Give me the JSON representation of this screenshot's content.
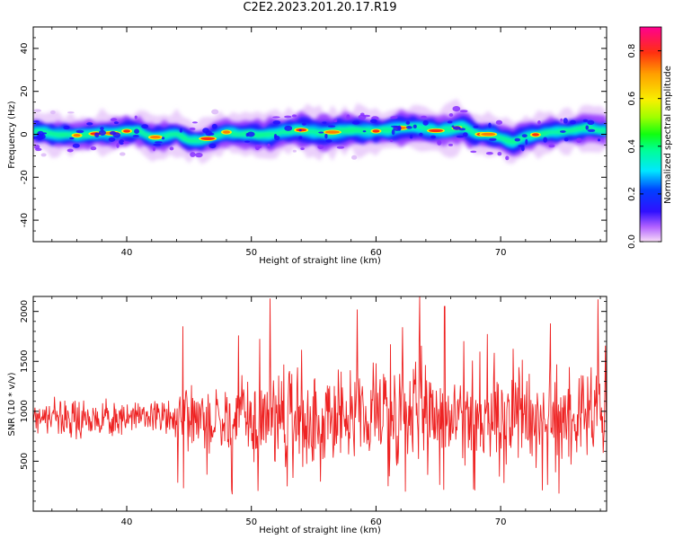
{
  "title": "C2E2.2023.201.20.17.R19",
  "colors": {
    "snr_line": "#ee2222",
    "axes": "#000000"
  },
  "chart_data": [
    {
      "type": "heatmap",
      "xlabel": "Height of straight line (km)",
      "ylabel": "Frequency (Hz)",
      "xlim": [
        32.5,
        78.5
      ],
      "ylim": [
        -50,
        50
      ],
      "xticks": [
        40,
        50,
        60,
        70
      ],
      "yticks": [
        -40,
        -20,
        0,
        20,
        40
      ],
      "colormap": "gist_ncar-like (magenta→purple→blue→cyan→green→yellow→orange→red)",
      "colorbar": {
        "label": "Normalized spectral amplitude",
        "range": [
          0,
          0.9
        ],
        "ticks": [
          "0.0",
          "0.2",
          "0.4",
          "0.6",
          "0.8"
        ]
      },
      "ridge_center": {
        "x": [
          33,
          34,
          35,
          36,
          37,
          38,
          39,
          40,
          41,
          42,
          43,
          44,
          45,
          46,
          47,
          48,
          49,
          50,
          51,
          52,
          53,
          54,
          55,
          56,
          57,
          58,
          59,
          60,
          61,
          62,
          63,
          64,
          65,
          66,
          67,
          68,
          69,
          70,
          71,
          72,
          73,
          74,
          75,
          76,
          77,
          78
        ],
        "y": [
          1.5,
          0,
          0,
          -0.5,
          0,
          0.5,
          0.5,
          1.5,
          1.5,
          -1.5,
          -1,
          0.5,
          -3,
          -3,
          -1,
          1,
          0,
          0,
          -0.5,
          0.5,
          1.5,
          2,
          1,
          0.5,
          1.5,
          2,
          1.5,
          1.5,
          2,
          3,
          3.5,
          2.5,
          1.5,
          2.5,
          3.5,
          0,
          0,
          -1.5,
          -4,
          -1,
          0,
          1,
          1.5,
          2,
          3,
          2
        ]
      }
    },
    {
      "type": "line",
      "xlabel": "Height of straight line (km)",
      "ylabel": "SNR (10 * v/v)",
      "xlim": [
        32.5,
        78.5
      ],
      "ylim": [
        0,
        2150
      ],
      "xticks": [
        40,
        50,
        60,
        70
      ],
      "yticks": [
        500,
        1000,
        1500,
        2000
      ],
      "series": [
        {
          "color": "#ee2222",
          "spike_peaks": {
            "x": [
              44.5,
              51.5,
              58.5,
              63.5,
              65.5,
              74,
              77.8
            ],
            "y": [
              1850,
              2130,
              2020,
              2150,
              2050,
              1880,
              2120
            ]
          }
        }
      ]
    }
  ]
}
